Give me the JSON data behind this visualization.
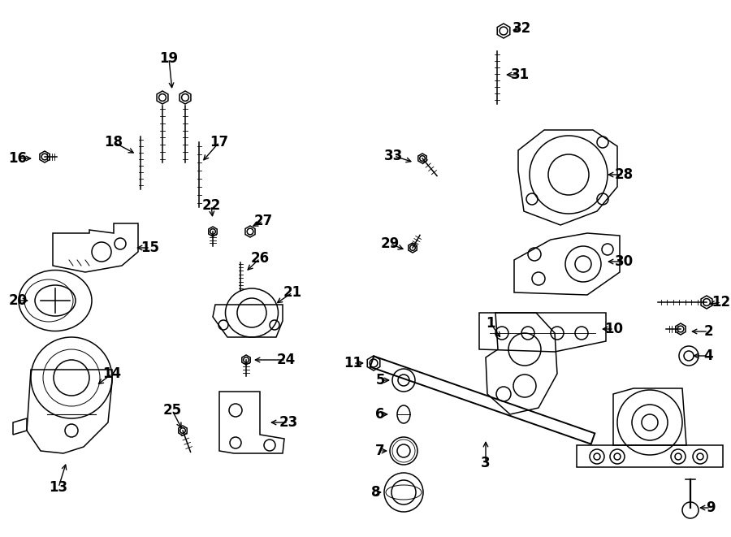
{
  "bg_color": "#ffffff",
  "line_color": "#000000",
  "fig_width": 9.0,
  "fig_height": 6.61,
  "lw": 1.1
}
